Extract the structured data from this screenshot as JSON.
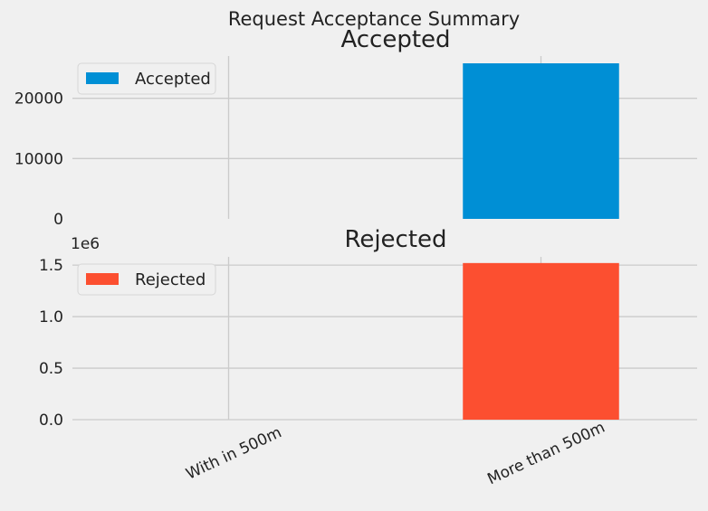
{
  "chart_data": {
    "type": "bar",
    "title": "Request Acceptance Summary",
    "categories": [
      "With in 500m",
      "More than 500m"
    ],
    "subplots": [
      {
        "title": "Accepted",
        "series": [
          {
            "name": "Accepted",
            "values": [
              0,
              25800
            ]
          }
        ],
        "color": "#008fd5",
        "ylim": [
          0,
          27000
        ],
        "yticks": [
          0,
          10000,
          20000
        ],
        "ytick_labels": [
          "0",
          "10000",
          "20000"
        ],
        "offset_label": "",
        "legend": "top-left",
        "grid": true
      },
      {
        "title": "Rejected",
        "series": [
          {
            "name": "Rejected",
            "values": [
              0,
              1520000
            ]
          }
        ],
        "color": "#fc4f30",
        "ylim": [
          0,
          1580000
        ],
        "yticks": [
          0,
          500000,
          1000000,
          1500000
        ],
        "ytick_labels": [
          "0.0",
          "0.5",
          "1.0",
          "1.5"
        ],
        "offset_label": "1e6",
        "legend": "top-left",
        "grid": true
      }
    ]
  }
}
